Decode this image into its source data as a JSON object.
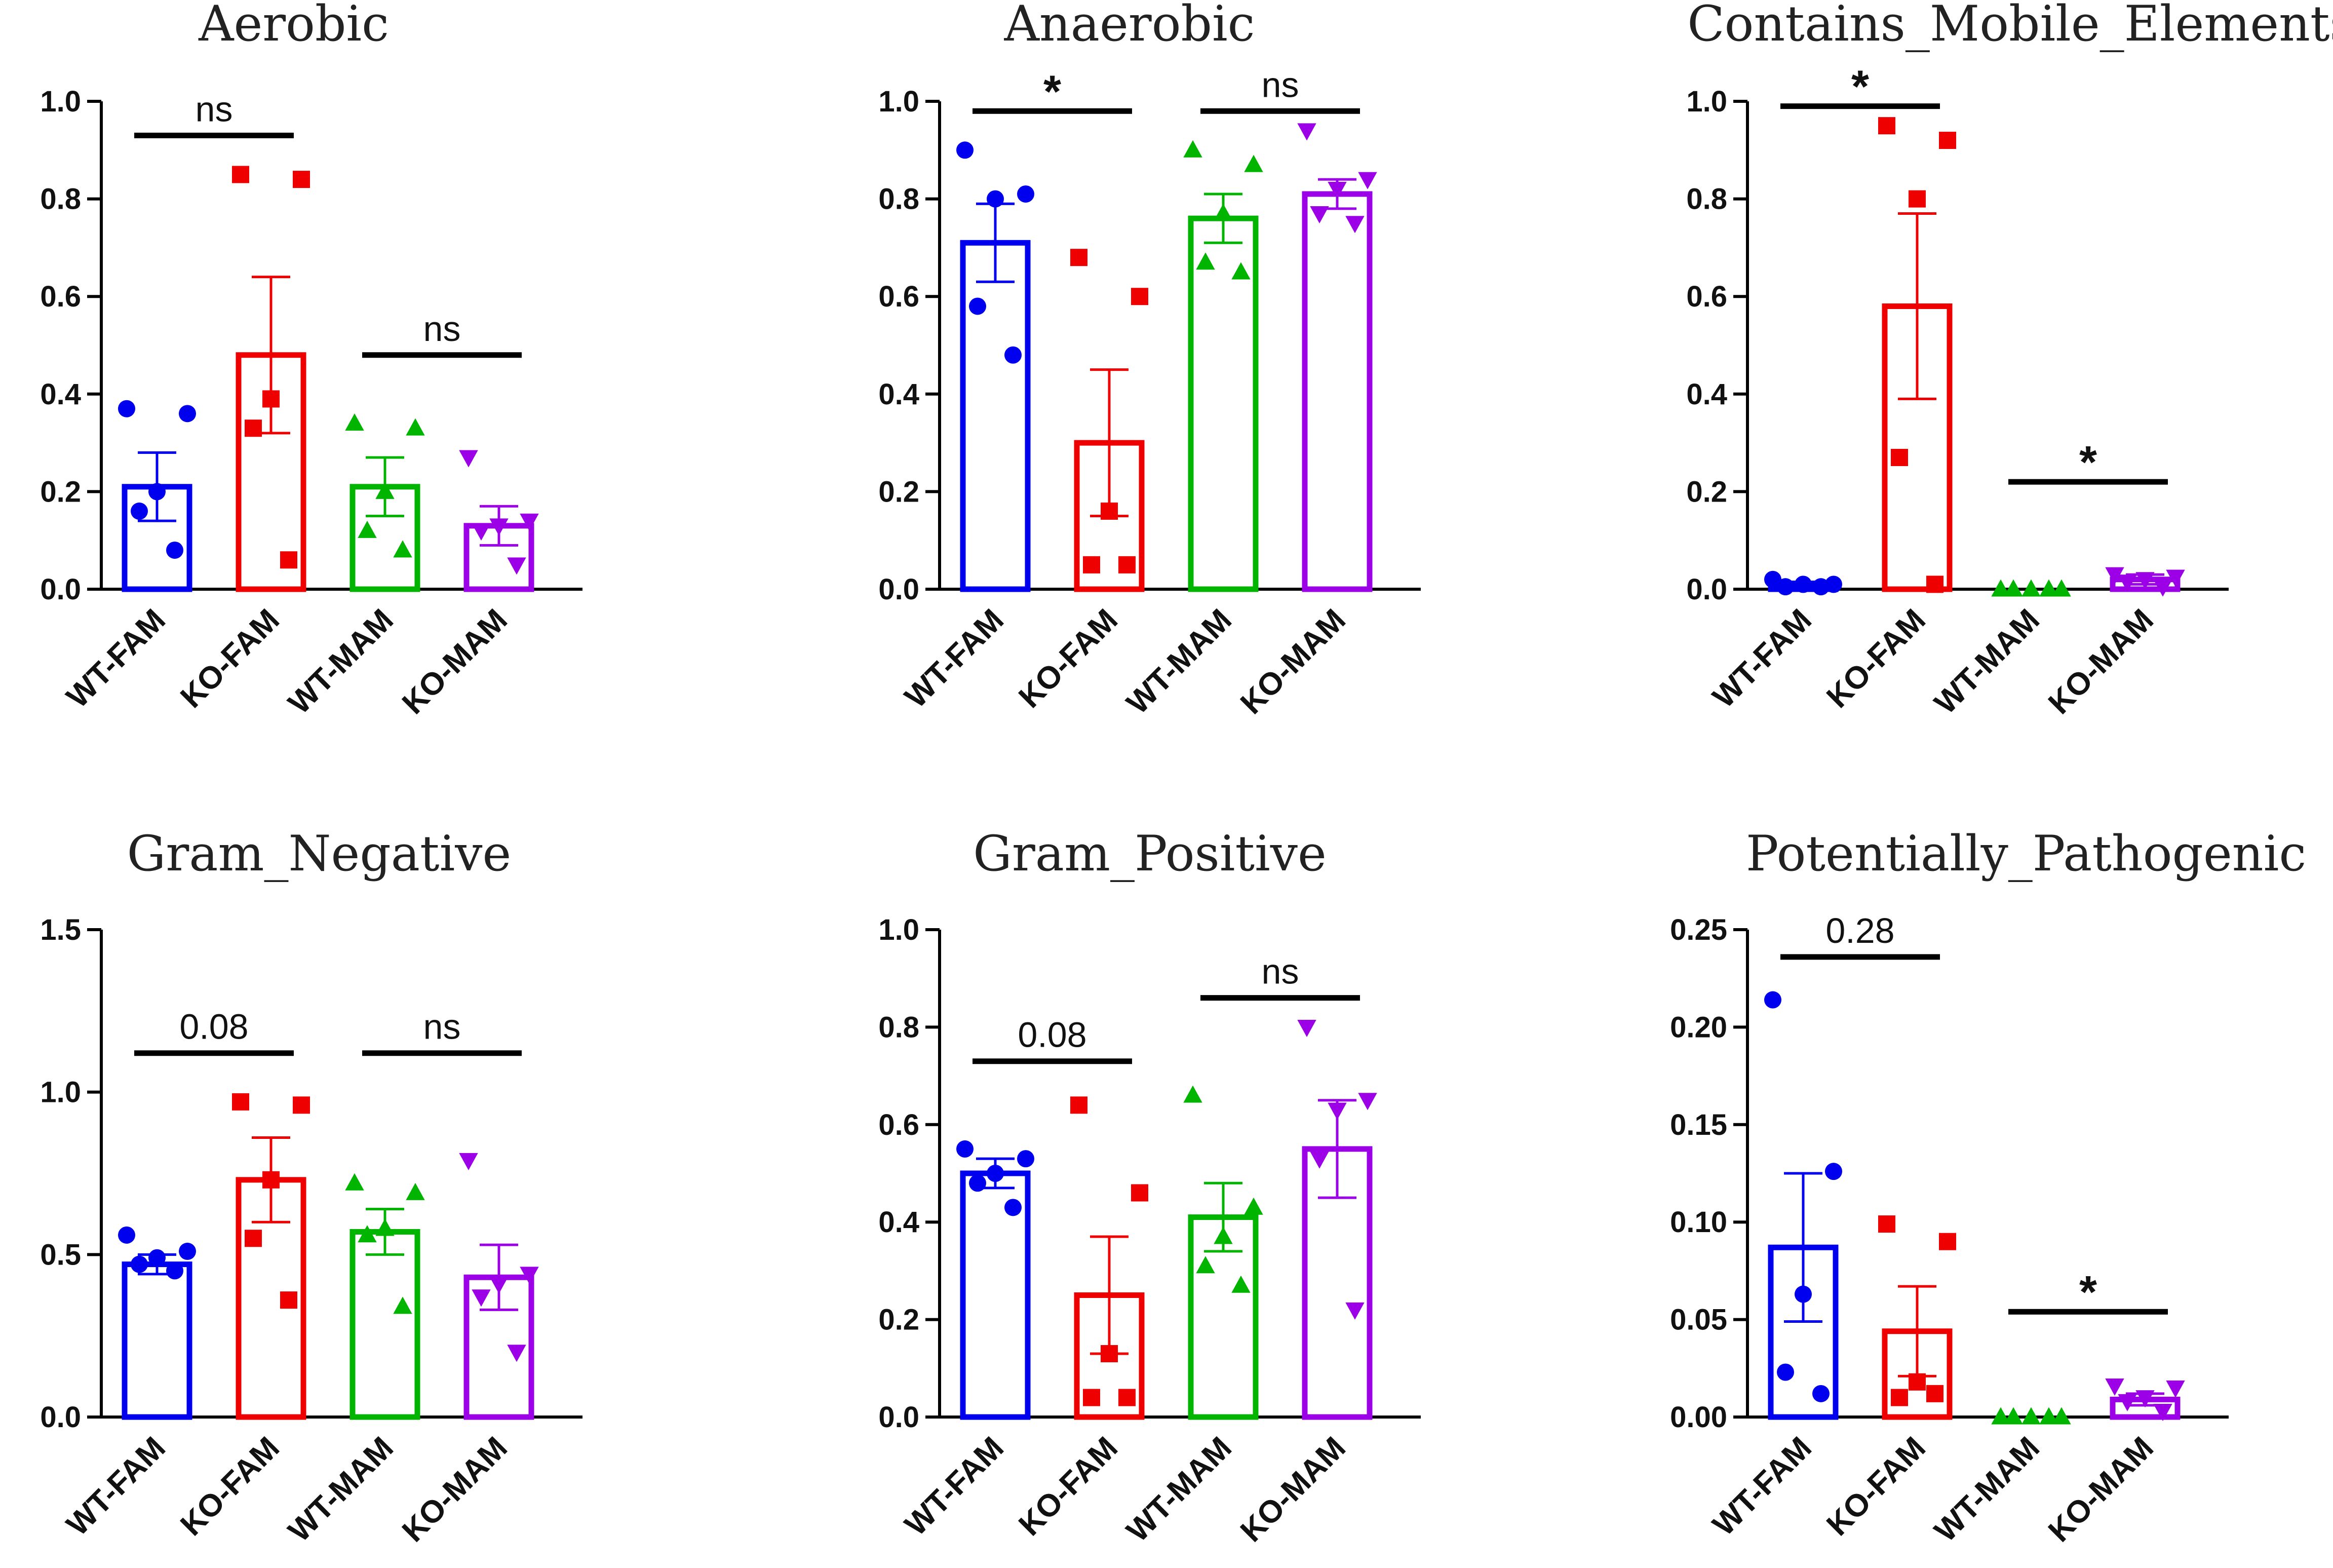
{
  "chart_data": [
    {
      "type": "bar",
      "title": "Aerobic",
      "categories": [
        "WT-FAM",
        "KO-FAM",
        "WT-MAM",
        "KO-MAM"
      ],
      "ylim": [
        0,
        1.0
      ],
      "yticks": [
        "0.0",
        "0.2",
        "0.4",
        "0.6",
        "0.8",
        "1.0"
      ],
      "series": [
        {
          "name": "WT-FAM",
          "marker": "circle",
          "mean": 0.21,
          "sem": 0.07,
          "points": [
            0.37,
            0.36,
            0.2,
            0.16,
            0.08
          ]
        },
        {
          "name": "KO-FAM",
          "marker": "square",
          "mean": 0.48,
          "sem": 0.16,
          "points": [
            0.85,
            0.84,
            0.39,
            0.33,
            0.06
          ]
        },
        {
          "name": "WT-MAM",
          "marker": "triangle",
          "mean": 0.21,
          "sem": 0.06,
          "points": [
            0.34,
            0.33,
            0.2,
            0.12,
            0.08
          ]
        },
        {
          "name": "KO-MAM",
          "marker": "inverted-triangle",
          "mean": 0.13,
          "sem": 0.04,
          "points": [
            0.27,
            0.14,
            0.13,
            0.12,
            0.05
          ]
        }
      ],
      "comparisons": [
        {
          "groups": [
            "WT-FAM",
            "KO-FAM"
          ],
          "label": "ns",
          "y": 0.93
        },
        {
          "groups": [
            "WT-MAM",
            "KO-MAM"
          ],
          "label": "ns",
          "y": 0.48
        }
      ]
    },
    {
      "type": "bar",
      "title": "Anaerobic",
      "categories": [
        "WT-FAM",
        "KO-FAM",
        "WT-MAM",
        "KO-MAM"
      ],
      "ylim": [
        0,
        1.0
      ],
      "yticks": [
        "0.0",
        "0.2",
        "0.4",
        "0.6",
        "0.8",
        "1.0"
      ],
      "series": [
        {
          "name": "WT-FAM",
          "marker": "circle",
          "mean": 0.71,
          "sem": 0.08,
          "points": [
            0.9,
            0.81,
            0.8,
            0.58,
            0.48
          ]
        },
        {
          "name": "KO-FAM",
          "marker": "square",
          "mean": 0.3,
          "sem": 0.15,
          "points": [
            0.68,
            0.6,
            0.16,
            0.05,
            0.05
          ]
        },
        {
          "name": "WT-MAM",
          "marker": "triangle",
          "mean": 0.76,
          "sem": 0.05,
          "points": [
            0.9,
            0.87,
            0.77,
            0.67,
            0.65
          ]
        },
        {
          "name": "KO-MAM",
          "marker": "inverted-triangle",
          "mean": 0.81,
          "sem": 0.03,
          "points": [
            0.94,
            0.84,
            0.82,
            0.77,
            0.75
          ]
        }
      ],
      "comparisons": [
        {
          "groups": [
            "WT-FAM",
            "KO-FAM"
          ],
          "label": "*",
          "y": 0.98
        },
        {
          "groups": [
            "WT-MAM",
            "KO-MAM"
          ],
          "label": "ns",
          "y": 0.98
        }
      ]
    },
    {
      "type": "bar",
      "title": "Contains_Mobile_Elements",
      "categories": [
        "WT-FAM",
        "KO-FAM",
        "WT-MAM",
        "KO-MAM"
      ],
      "ylim": [
        0,
        1.0
      ],
      "yticks": [
        "0.0",
        "0.2",
        "0.4",
        "0.6",
        "0.8",
        "1.0"
      ],
      "series": [
        {
          "name": "WT-FAM",
          "marker": "circle",
          "mean": 0.01,
          "sem": 0.005,
          "points": [
            0.02,
            0.01,
            0.01,
            0.005,
            0.005
          ]
        },
        {
          "name": "KO-FAM",
          "marker": "square",
          "mean": 0.58,
          "sem": 0.19,
          "points": [
            0.95,
            0.92,
            0.8,
            0.27,
            0.01
          ]
        },
        {
          "name": "WT-MAM",
          "marker": "triangle",
          "mean": 0.0,
          "sem": 0.0,
          "points": [
            0.0,
            0.0,
            0.0,
            0.0,
            0.0
          ]
        },
        {
          "name": "KO-MAM",
          "marker": "inverted-triangle",
          "mean": 0.02,
          "sem": 0.01,
          "points": [
            0.03,
            0.025,
            0.02,
            0.015,
            0.005
          ]
        }
      ],
      "comparisons": [
        {
          "groups": [
            "WT-FAM",
            "KO-FAM"
          ],
          "label": "*",
          "y": 0.99
        },
        {
          "groups": [
            "WT-MAM",
            "KO-MAM"
          ],
          "label": "*",
          "y": 0.22
        }
      ]
    },
    {
      "type": "bar",
      "title": "Gram_Negative",
      "categories": [
        "WT-FAM",
        "KO-FAM",
        "WT-MAM",
        "KO-MAM"
      ],
      "ylim": [
        0,
        1.5
      ],
      "yticks": [
        "0.0",
        "0.5",
        "1.0",
        "1.5"
      ],
      "series": [
        {
          "name": "WT-FAM",
          "marker": "circle",
          "mean": 0.47,
          "sem": 0.03,
          "points": [
            0.56,
            0.51,
            0.49,
            0.47,
            0.45
          ]
        },
        {
          "name": "KO-FAM",
          "marker": "square",
          "mean": 0.73,
          "sem": 0.13,
          "points": [
            0.97,
            0.96,
            0.73,
            0.55,
            0.36
          ]
        },
        {
          "name": "WT-MAM",
          "marker": "triangle",
          "mean": 0.57,
          "sem": 0.07,
          "points": [
            0.72,
            0.69,
            0.58,
            0.56,
            0.34
          ]
        },
        {
          "name": "KO-MAM",
          "marker": "inverted-triangle",
          "mean": 0.43,
          "sem": 0.1,
          "points": [
            0.79,
            0.44,
            0.41,
            0.37,
            0.2
          ]
        }
      ],
      "comparisons": [
        {
          "groups": [
            "WT-FAM",
            "KO-FAM"
          ],
          "label": "0.08",
          "y": 1.12
        },
        {
          "groups": [
            "WT-MAM",
            "KO-MAM"
          ],
          "label": "ns",
          "y": 1.12
        }
      ]
    },
    {
      "type": "bar",
      "title": "Gram_Positive",
      "categories": [
        "WT-FAM",
        "KO-FAM",
        "WT-MAM",
        "KO-MAM"
      ],
      "ylim": [
        0,
        1.0
      ],
      "yticks": [
        "0.0",
        "0.2",
        "0.4",
        "0.6",
        "0.8",
        "1.0"
      ],
      "series": [
        {
          "name": "WT-FAM",
          "marker": "circle",
          "mean": 0.5,
          "sem": 0.03,
          "points": [
            0.55,
            0.53,
            0.5,
            0.48,
            0.43
          ]
        },
        {
          "name": "KO-FAM",
          "marker": "square",
          "mean": 0.25,
          "sem": 0.12,
          "points": [
            0.64,
            0.46,
            0.13,
            0.04,
            0.04
          ]
        },
        {
          "name": "WT-MAM",
          "marker": "triangle",
          "mean": 0.41,
          "sem": 0.07,
          "points": [
            0.66,
            0.43,
            0.37,
            0.31,
            0.27
          ]
        },
        {
          "name": "KO-MAM",
          "marker": "inverted-triangle",
          "mean": 0.55,
          "sem": 0.1,
          "points": [
            0.8,
            0.65,
            0.63,
            0.53,
            0.22
          ]
        }
      ],
      "comparisons": [
        {
          "groups": [
            "WT-FAM",
            "KO-FAM"
          ],
          "label": "0.08",
          "y": 0.73
        },
        {
          "groups": [
            "WT-MAM",
            "KO-MAM"
          ],
          "label": "ns",
          "y": 0.86
        }
      ]
    },
    {
      "type": "bar",
      "title": "Potentially_Pathogenic",
      "categories": [
        "WT-FAM",
        "KO-FAM",
        "WT-MAM",
        "KO-MAM"
      ],
      "ylim": [
        0,
        0.25
      ],
      "yticks": [
        "0.00",
        "0.05",
        "0.10",
        "0.15",
        "0.20",
        "0.25"
      ],
      "series": [
        {
          "name": "WT-FAM",
          "marker": "circle",
          "mean": 0.087,
          "sem": 0.038,
          "points": [
            0.214,
            0.126,
            0.063,
            0.023,
            0.012
          ]
        },
        {
          "name": "KO-FAM",
          "marker": "square",
          "mean": 0.044,
          "sem": 0.023,
          "points": [
            0.099,
            0.09,
            0.018,
            0.01,
            0.012
          ]
        },
        {
          "name": "WT-MAM",
          "marker": "triangle",
          "mean": 0.0,
          "sem": 0.0,
          "points": [
            0.0,
            0.0,
            0.0,
            0.0,
            0.0
          ]
        },
        {
          "name": "KO-MAM",
          "marker": "inverted-triangle",
          "mean": 0.009,
          "sem": 0.003,
          "points": [
            0.016,
            0.015,
            0.01,
            0.008,
            0.003
          ]
        }
      ],
      "comparisons": [
        {
          "groups": [
            "WT-FAM",
            "KO-FAM"
          ],
          "label": "0.28",
          "y": 0.236
        },
        {
          "groups": [
            "WT-MAM",
            "KO-MAM"
          ],
          "label": "*",
          "y": 0.054
        }
      ]
    }
  ],
  "colors": {
    "WT-FAM": "#0000ee",
    "KO-FAM": "#ee0000",
    "WT-MAM": "#00b400",
    "KO-MAM": "#9b00e6",
    "axis": "#000000",
    "bracket": "#000000"
  }
}
